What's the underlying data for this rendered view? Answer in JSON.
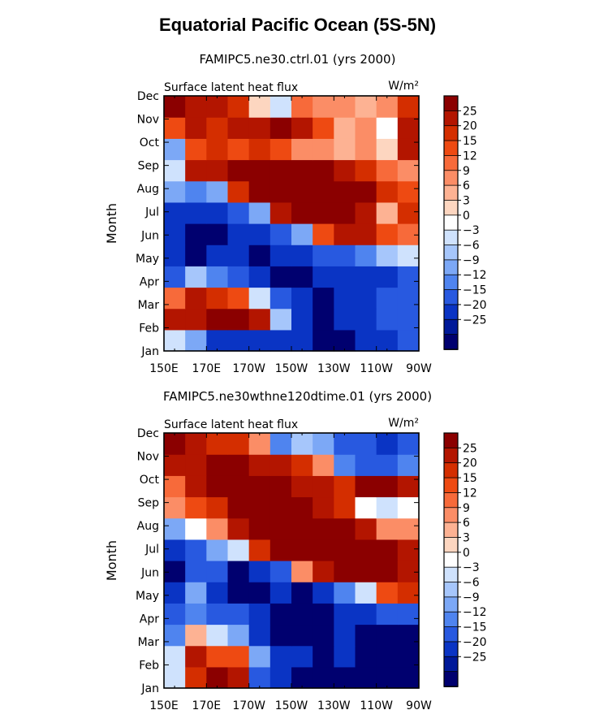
{
  "main_title": "Equatorial Pacific Ocean (5S-5N)",
  "colorbar": {
    "labels": [
      "25",
      "20",
      "15",
      "12",
      "9",
      "6",
      "3",
      "0",
      "−3",
      "−6",
      "−9",
      "−12",
      "−15",
      "−20",
      "−25"
    ],
    "colors": [
      "#8b0000",
      "#b31500",
      "#d42e00",
      "#ee4a12",
      "#f76a3a",
      "#fb8d66",
      "#fdb293",
      "#fdd6c0",
      "#ffffff",
      "#cfe2fd",
      "#a6c6fb",
      "#7ca8f6",
      "#4f84ef",
      "#2859e0",
      "#0a34c4",
      "#001999",
      "#00006f"
    ]
  },
  "chart_data": [
    {
      "type": "heatmap",
      "title": "FAMIPC5.ne30.ctrl.01 (yrs 2000)",
      "field_label": "Surface latent heat flux",
      "units": "W/m²",
      "ylabel": "Month",
      "x_ticks": [
        "150E",
        "170E",
        "170W",
        "150W",
        "130W",
        "110W",
        "90W"
      ],
      "y_ticks": [
        "Jan",
        "Feb",
        "Mar",
        "Apr",
        "May",
        "Jun",
        "Jul",
        "Aug",
        "Sep",
        "Oct",
        "Nov",
        "Dec"
      ],
      "values": [
        [
          -5,
          -10,
          -22,
          -24,
          -25,
          -25,
          -25,
          -26,
          -26,
          -24,
          -22,
          -20
        ],
        [
          20,
          24,
          26,
          26,
          24,
          -8,
          -24,
          -26,
          -24,
          -22,
          -20,
          -16
        ],
        [
          10,
          20,
          18,
          12,
          -6,
          -20,
          -25,
          -26,
          -24,
          -22,
          -20,
          -16
        ],
        [
          -18,
          -8,
          -14,
          -20,
          -25,
          -26,
          -26,
          -24,
          -24,
          -22,
          -22,
          -18
        ],
        [
          -24,
          -26,
          -22,
          -25,
          -26,
          -24,
          -22,
          -20,
          -18,
          -14,
          -8,
          -6
        ],
        [
          -25,
          -26,
          -26,
          -25,
          -24,
          -20,
          -12,
          12,
          22,
          24,
          12,
          10
        ],
        [
          -22,
          -24,
          -25,
          -20,
          -10,
          24,
          28,
          28,
          26,
          24,
          4,
          16
        ],
        [
          -12,
          -14,
          -10,
          18,
          26,
          28,
          28,
          28,
          28,
          26,
          18,
          12
        ],
        [
          -6,
          20,
          24,
          26,
          28,
          28,
          28,
          26,
          24,
          18,
          10,
          8
        ],
        [
          -10,
          14,
          16,
          12,
          18,
          12,
          8,
          6,
          4,
          8,
          2,
          20
        ],
        [
          14,
          22,
          16,
          20,
          22,
          28,
          20,
          14,
          4,
          6,
          -2,
          24
        ],
        [
          28,
          24,
          20,
          18,
          2,
          -6,
          10,
          8,
          6,
          4,
          6,
          16
        ]
      ]
    },
    {
      "type": "heatmap",
      "title": "FAMIPC5.ne30wthne120dtime.01 (yrs 2000)",
      "field_label": "Surface latent heat flux",
      "units": "W/m²",
      "ylabel": "Month",
      "x_ticks": [
        "150E",
        "170E",
        "170W",
        "150W",
        "130W",
        "110W",
        "90W"
      ],
      "y_ticks": [
        "Jan",
        "Feb",
        "Mar",
        "Apr",
        "May",
        "Jun",
        "Jul",
        "Aug",
        "Sep",
        "Oct",
        "Nov",
        "Dec"
      ],
      "values": [
        [
          -6,
          18,
          26,
          22,
          -16,
          -24,
          -26,
          -26,
          -26,
          -26,
          -26,
          -26
        ],
        [
          -4,
          20,
          14,
          12,
          -10,
          -24,
          -25,
          -26,
          -24,
          -26,
          -26,
          -26
        ],
        [
          -14,
          4,
          -6,
          -12,
          -22,
          -26,
          -26,
          -26,
          -24,
          -26,
          -26,
          -26
        ],
        [
          -20,
          -14,
          -20,
          -18,
          -22,
          -26,
          -26,
          -26,
          -24,
          -22,
          -20,
          -18
        ],
        [
          -24,
          -12,
          -22,
          -26,
          -26,
          -24,
          -26,
          -22,
          -14,
          -4,
          12,
          16
        ],
        [
          -26,
          -18,
          -16,
          -26,
          -24,
          -16,
          6,
          20,
          26,
          26,
          26,
          24
        ],
        [
          -24,
          -16,
          -10,
          -6,
          16,
          26,
          28,
          28,
          28,
          28,
          26,
          22
        ],
        [
          -10,
          -2,
          6,
          22,
          26,
          28,
          28,
          28,
          26,
          20,
          6,
          8
        ],
        [
          6,
          12,
          18,
          28,
          28,
          28,
          26,
          24,
          18,
          -2,
          -4,
          -2
        ],
        [
          10,
          22,
          26,
          28,
          28,
          26,
          24,
          22,
          16,
          28,
          26,
          24
        ],
        [
          22,
          24,
          26,
          28,
          24,
          20,
          18,
          8,
          -14,
          -18,
          -16,
          -14
        ],
        [
          26,
          24,
          18,
          16,
          8,
          -14,
          -8,
          -12,
          -16,
          -20,
          -22,
          -20
        ]
      ]
    }
  ]
}
